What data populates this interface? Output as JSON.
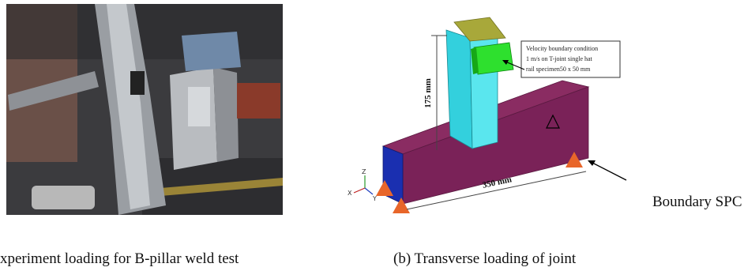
{
  "figure": {
    "panel_a": {
      "caption": "xperiment loading for B-pillar weld test"
    },
    "panel_b": {
      "caption": "(b) Transverse loading of joint",
      "dimension_height": "175 mm",
      "dimension_length": "350 mm",
      "annotation": [
        "Velocity boundary condition",
        "1 m/s on T-joint single hat",
        "rail specimen50 x 50 mm"
      ],
      "axes": [
        "Z",
        "X",
        "Y"
      ],
      "callout": "Boundary SPC"
    }
  }
}
